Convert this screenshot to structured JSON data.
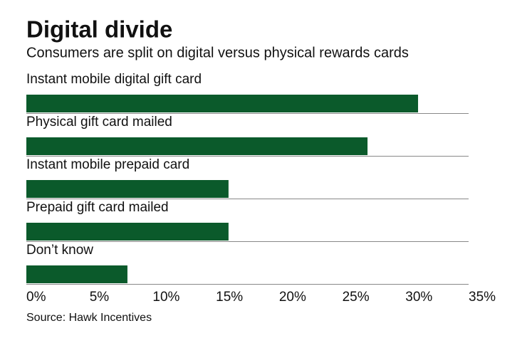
{
  "chart_data": {
    "type": "bar",
    "orientation": "horizontal",
    "title": "Digital divide",
    "subtitle": "Consumers are split on digital versus physical rewards cards",
    "categories": [
      "Instant mobile digital gift card",
      "Physical gift card mailed",
      "Instant mobile prepaid card",
      "Prepaid gift card mailed",
      "Don’t know"
    ],
    "values": [
      31,
      27,
      16,
      16,
      8
    ],
    "color": "#0b5a2b",
    "xlim": [
      0,
      35
    ],
    "xticks": [
      {
        "value": 0,
        "label": "0%"
      },
      {
        "value": 5,
        "label": "5%"
      },
      {
        "value": 10,
        "label": "10%"
      },
      {
        "value": 15,
        "label": "15%"
      },
      {
        "value": 20,
        "label": "20%"
      },
      {
        "value": 25,
        "label": "25%"
      },
      {
        "value": 30,
        "label": "30%"
      },
      {
        "value": 35,
        "label": "35%"
      }
    ],
    "source": "Source: Hawk Incentives"
  }
}
